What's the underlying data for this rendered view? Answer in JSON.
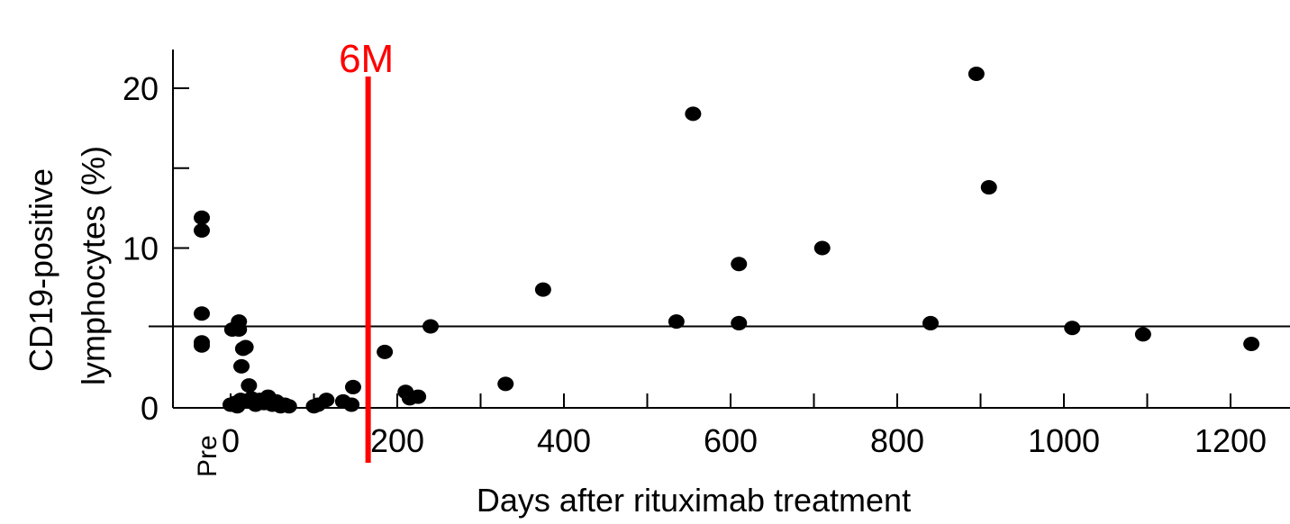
{
  "chart_data": {
    "type": "scatter",
    "title": "",
    "xlabel": "Days after rituximab treatment",
    "ylabel": "CD19-positive lymphocytes (%)",
    "ylabel_lines": [
      "CD19-positive",
      "lymphocytes (%)"
    ],
    "xlim": [
      -70,
      1265
    ],
    "ylim": [
      0,
      22
    ],
    "x_ticks": [
      0,
      200,
      400,
      600,
      800,
      1000,
      1200
    ],
    "x_minor_ticks": [
      100,
      300,
      500,
      700,
      900,
      1100
    ],
    "y_ticks": [
      0,
      10,
      20
    ],
    "y_minor_ticks": [
      5,
      15
    ],
    "x_category_label": "Pre",
    "reference_line": {
      "y": 5.1
    },
    "marker_line": {
      "x": 165,
      "label": "6M",
      "color": "#ff0000"
    },
    "grid": false,
    "legend": "none",
    "point_color": "#000000",
    "pre_values": [
      11.9,
      11.1,
      5.9,
      4.1,
      3.9
    ],
    "series": [
      {
        "values": [
          [
            0,
            0.2
          ],
          [
            2,
            4.9
          ],
          [
            5,
            0.3
          ],
          [
            8,
            0.1
          ],
          [
            10,
            5.4
          ],
          [
            10,
            4.9
          ],
          [
            12,
            0.5
          ],
          [
            13,
            2.6
          ],
          [
            15,
            3.7
          ],
          [
            18,
            3.8
          ],
          [
            20,
            0.4
          ],
          [
            22,
            1.4
          ],
          [
            25,
            0.6
          ],
          [
            30,
            0.2
          ],
          [
            35,
            0.5
          ],
          [
            40,
            0.3
          ],
          [
            45,
            0.7
          ],
          [
            50,
            0.2
          ],
          [
            55,
            0.4
          ],
          [
            60,
            0.1
          ],
          [
            65,
            0.2
          ],
          [
            70,
            0.1
          ],
          [
            100,
            0.1
          ],
          [
            105,
            0.2
          ],
          [
            115,
            0.5
          ],
          [
            135,
            0.4
          ],
          [
            145,
            0.2
          ],
          [
            147,
            1.3
          ],
          [
            185,
            3.5
          ],
          [
            210,
            1.0
          ],
          [
            215,
            0.6
          ],
          [
            225,
            0.7
          ],
          [
            240,
            5.1
          ],
          [
            330,
            1.5
          ],
          [
            375,
            7.4
          ],
          [
            535,
            5.4
          ],
          [
            555,
            18.4
          ],
          [
            610,
            5.3
          ],
          [
            610,
            9.0
          ],
          [
            710,
            10.0
          ],
          [
            840,
            5.3
          ],
          [
            895,
            20.9
          ],
          [
            910,
            13.8
          ],
          [
            1010,
            5.0
          ],
          [
            1095,
            4.6
          ],
          [
            1225,
            4.0
          ]
        ]
      }
    ]
  }
}
